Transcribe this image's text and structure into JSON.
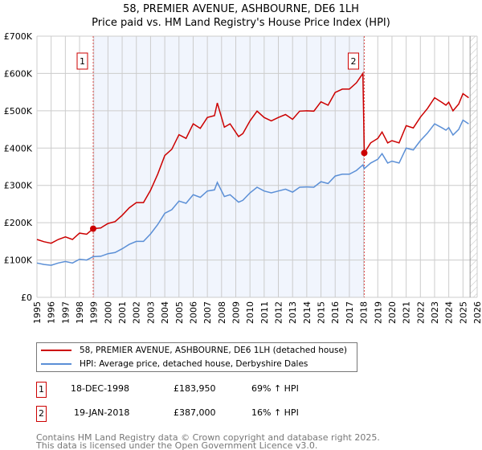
{
  "chart_data": {
    "type": "line",
    "title": "58, PREMIER AVENUE, ASHBOURNE, DE6 1LH",
    "subtitle": "Price paid vs. HM Land Registry's House Price Index (HPI)",
    "xlim": [
      1995,
      2026
    ],
    "ylim": [
      0,
      700000
    ],
    "x_ticks": [
      "1995",
      "1996",
      "1997",
      "1998",
      "1999",
      "2000",
      "2001",
      "2002",
      "2003",
      "2004",
      "2005",
      "2006",
      "2007",
      "2008",
      "2009",
      "2010",
      "2011",
      "2012",
      "2013",
      "2014",
      "2015",
      "2016",
      "2017",
      "2018",
      "2019",
      "2020",
      "2021",
      "2022",
      "2023",
      "2024",
      "2025",
      "2026"
    ],
    "y_ticks": [
      {
        "v": 0,
        "label": "£0"
      },
      {
        "v": 100000,
        "label": "£100K"
      },
      {
        "v": 200000,
        "label": "£200K"
      },
      {
        "v": 300000,
        "label": "£300K"
      },
      {
        "v": 400000,
        "label": "£400K"
      },
      {
        "v": 500000,
        "label": "£500K"
      },
      {
        "v": 600000,
        "label": "£600K"
      },
      {
        "v": 700000,
        "label": "£700K"
      }
    ],
    "grid": true,
    "series": [
      {
        "name": "58, PREMIER AVENUE, ASHBOURNE, DE6 1LH (detached house)",
        "color": "#cc0000",
        "x": [
          1995,
          1995.5,
          1996,
          1996.5,
          1997,
          1997.5,
          1998,
          1998.5,
          1998.96,
          1999.5,
          2000,
          2000.5,
          2001,
          2001.5,
          2002,
          2002.5,
          2003,
          2003.5,
          2004,
          2004.5,
          2005,
          2005.5,
          2006,
          2006.5,
          2007,
          2007.5,
          2007.7,
          2008.2,
          2008.6,
          2009.2,
          2009.5,
          2010,
          2010.5,
          2011,
          2011.5,
          2012,
          2012.5,
          2013,
          2013.5,
          2014,
          2014.5,
          2015,
          2015.5,
          2016,
          2016.5,
          2017,
          2017.5,
          2017.95,
          2018.05,
          2018.5,
          2019,
          2019.3,
          2019.7,
          2020,
          2020.5,
          2021,
          2021.5,
          2022,
          2022.5,
          2023,
          2023.5,
          2023.8,
          2024,
          2024.3,
          2024.7,
          2025,
          2025.4
        ],
        "y": [
          155,
          149,
          145,
          155,
          162,
          155,
          172,
          169,
          184,
          186,
          198,
          203,
          220,
          240,
          254,
          254,
          287,
          330,
          380,
          397,
          436,
          426,
          465,
          453,
          482,
          487,
          521,
          456,
          465,
          431,
          439,
          473,
          499,
          482,
          473,
          482,
          490,
          477,
          499,
          500,
          499,
          524,
          515,
          549,
          558,
          558,
          575,
          600,
          387,
          414,
          426,
          443,
          414,
          420,
          414,
          460,
          454,
          483,
          506,
          535,
          523,
          515,
          523,
          500,
          518,
          546,
          535
        ],
        "y_unit": "thousands GBP"
      },
      {
        "name": "HPI: Average price, detached house, Derbyshire Dales",
        "color": "#5b8fd6",
        "x": [
          1995,
          1995.5,
          1996,
          1996.5,
          1997,
          1997.5,
          1998,
          1998.5,
          1998.96,
          1999.5,
          2000,
          2000.5,
          2001,
          2001.5,
          2002,
          2002.5,
          2003,
          2003.5,
          2004,
          2004.5,
          2005,
          2005.5,
          2006,
          2006.5,
          2007,
          2007.5,
          2007.7,
          2008.2,
          2008.6,
          2009.2,
          2009.5,
          2010,
          2010.5,
          2011,
          2011.5,
          2012,
          2012.5,
          2013,
          2013.5,
          2014,
          2014.5,
          2015,
          2015.5,
          2016,
          2016.5,
          2017,
          2017.5,
          2017.95,
          2018.05,
          2018.5,
          2019,
          2019.3,
          2019.7,
          2020,
          2020.5,
          2021,
          2021.5,
          2022,
          2022.5,
          2023,
          2023.5,
          2023.8,
          2024,
          2024.3,
          2024.7,
          2025,
          2025.4
        ],
        "y": [
          92,
          88,
          86,
          92,
          96,
          92,
          102,
          100,
          109,
          110,
          117,
          120,
          130,
          142,
          150,
          150,
          170,
          195,
          225,
          235,
          258,
          252,
          275,
          268,
          285,
          288,
          308,
          270,
          275,
          255,
          260,
          280,
          295,
          285,
          280,
          285,
          290,
          282,
          295,
          296,
          295,
          310,
          305,
          325,
          330,
          330,
          340,
          355,
          345,
          360,
          370,
          385,
          360,
          365,
          360,
          400,
          395,
          420,
          440,
          465,
          455,
          448,
          455,
          435,
          450,
          475,
          465
        ],
        "y_unit": "thousands GBP"
      }
    ],
    "annotations": [
      {
        "label": "1",
        "x": 1998.96,
        "y": 183950,
        "date": "18-DEC-1998",
        "price": "£183,950",
        "hpi": "69% ↑ HPI"
      },
      {
        "label": "2",
        "x": 2018.05,
        "y": 387000,
        "date": "19-JAN-2018",
        "price": "£387,000",
        "hpi": "16% ↑ HPI"
      }
    ],
    "shaded_range": [
      1998.96,
      2018.05
    ],
    "hatched_from": 2025.5,
    "legend_position": "bottom"
  },
  "footer": {
    "line1": "Contains HM Land Registry data © Crown copyright and database right 2025.",
    "line2": "This data is licensed under the Open Government Licence v3.0."
  }
}
